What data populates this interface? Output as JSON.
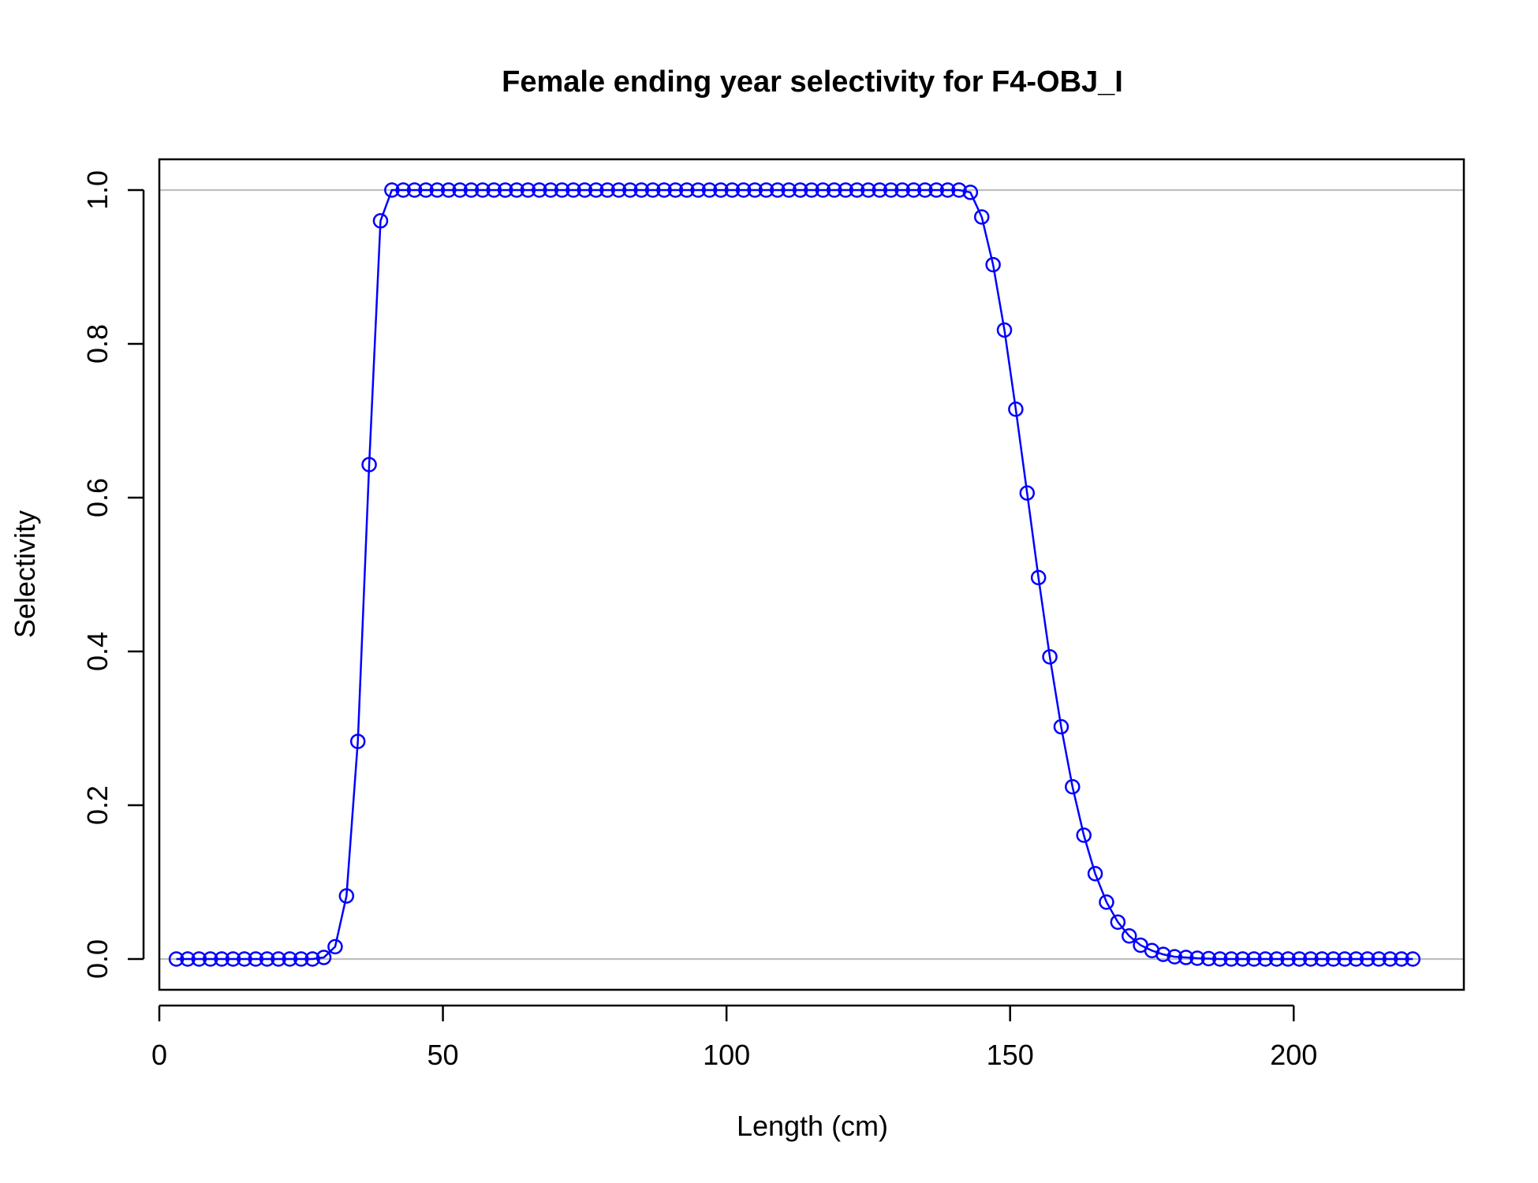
{
  "chart_data": {
    "type": "line",
    "title": "Female ending year selectivity for F4-OBJ_I",
    "xlabel": "Length (cm)",
    "ylabel": "Selectivity",
    "xlim": [
      0,
      230
    ],
    "ylim": [
      -0.04,
      1.04
    ],
    "xticks": [
      "0",
      "50",
      "100",
      "150",
      "200"
    ],
    "yticks": [
      "0.0",
      "0.2",
      "0.4",
      "0.6",
      "0.8",
      "1.0"
    ],
    "reference_lines": [
      0,
      1
    ],
    "grid": false,
    "legend": "none",
    "x": [
      3,
      5,
      7,
      9,
      11,
      13,
      15,
      17,
      19,
      21,
      23,
      25,
      27,
      29,
      31,
      33,
      35,
      37,
      39,
      41,
      43,
      45,
      47,
      49,
      51,
      53,
      55,
      57,
      59,
      61,
      63,
      65,
      67,
      69,
      71,
      73,
      75,
      77,
      79,
      81,
      83,
      85,
      87,
      89,
      91,
      93,
      95,
      97,
      99,
      101,
      103,
      105,
      107,
      109,
      111,
      113,
      115,
      117,
      119,
      121,
      123,
      125,
      127,
      129,
      131,
      133,
      135,
      137,
      139,
      141,
      143,
      145,
      147,
      149,
      151,
      153,
      155,
      157,
      159,
      161,
      163,
      165,
      167,
      169,
      171,
      173,
      175,
      177,
      179,
      181,
      183,
      185,
      187,
      189,
      191,
      193,
      195,
      197,
      199,
      201,
      203,
      205,
      207,
      209,
      211,
      213,
      215,
      217,
      219,
      221
    ],
    "series": [
      {
        "y": [
          0,
          0,
          0,
          0,
          0,
          0,
          0,
          0,
          0,
          0,
          0,
          0,
          0,
          0.002,
          0.016,
          0.082,
          0.283,
          0.643,
          0.96,
          1,
          1,
          1,
          1,
          1,
          1,
          1,
          1,
          1,
          1,
          1,
          1,
          1,
          1,
          1,
          1,
          1,
          1,
          1,
          1,
          1,
          1,
          1,
          1,
          1,
          1,
          1,
          1,
          1,
          1,
          1,
          1,
          1,
          1,
          1,
          1,
          1,
          1,
          1,
          1,
          1,
          1,
          1,
          1,
          1,
          1,
          1,
          1,
          1,
          1,
          1,
          0.997,
          0.965,
          0.903,
          0.818,
          0.715,
          0.606,
          0.496,
          0.393,
          0.302,
          0.224,
          0.161,
          0.111,
          0.074,
          0.048,
          0.03,
          0.018,
          0.011,
          0.006,
          0.003,
          0.002,
          0.001,
          0.0005,
          0,
          0,
          0,
          0,
          0,
          0,
          0,
          0,
          0,
          0,
          0,
          0,
          0,
          0,
          0,
          0,
          0,
          0
        ],
        "color": "#0000ff"
      }
    ],
    "colors": {
      "series": "#0000ff",
      "reference": "#bebebe",
      "axes": "#000000"
    }
  }
}
